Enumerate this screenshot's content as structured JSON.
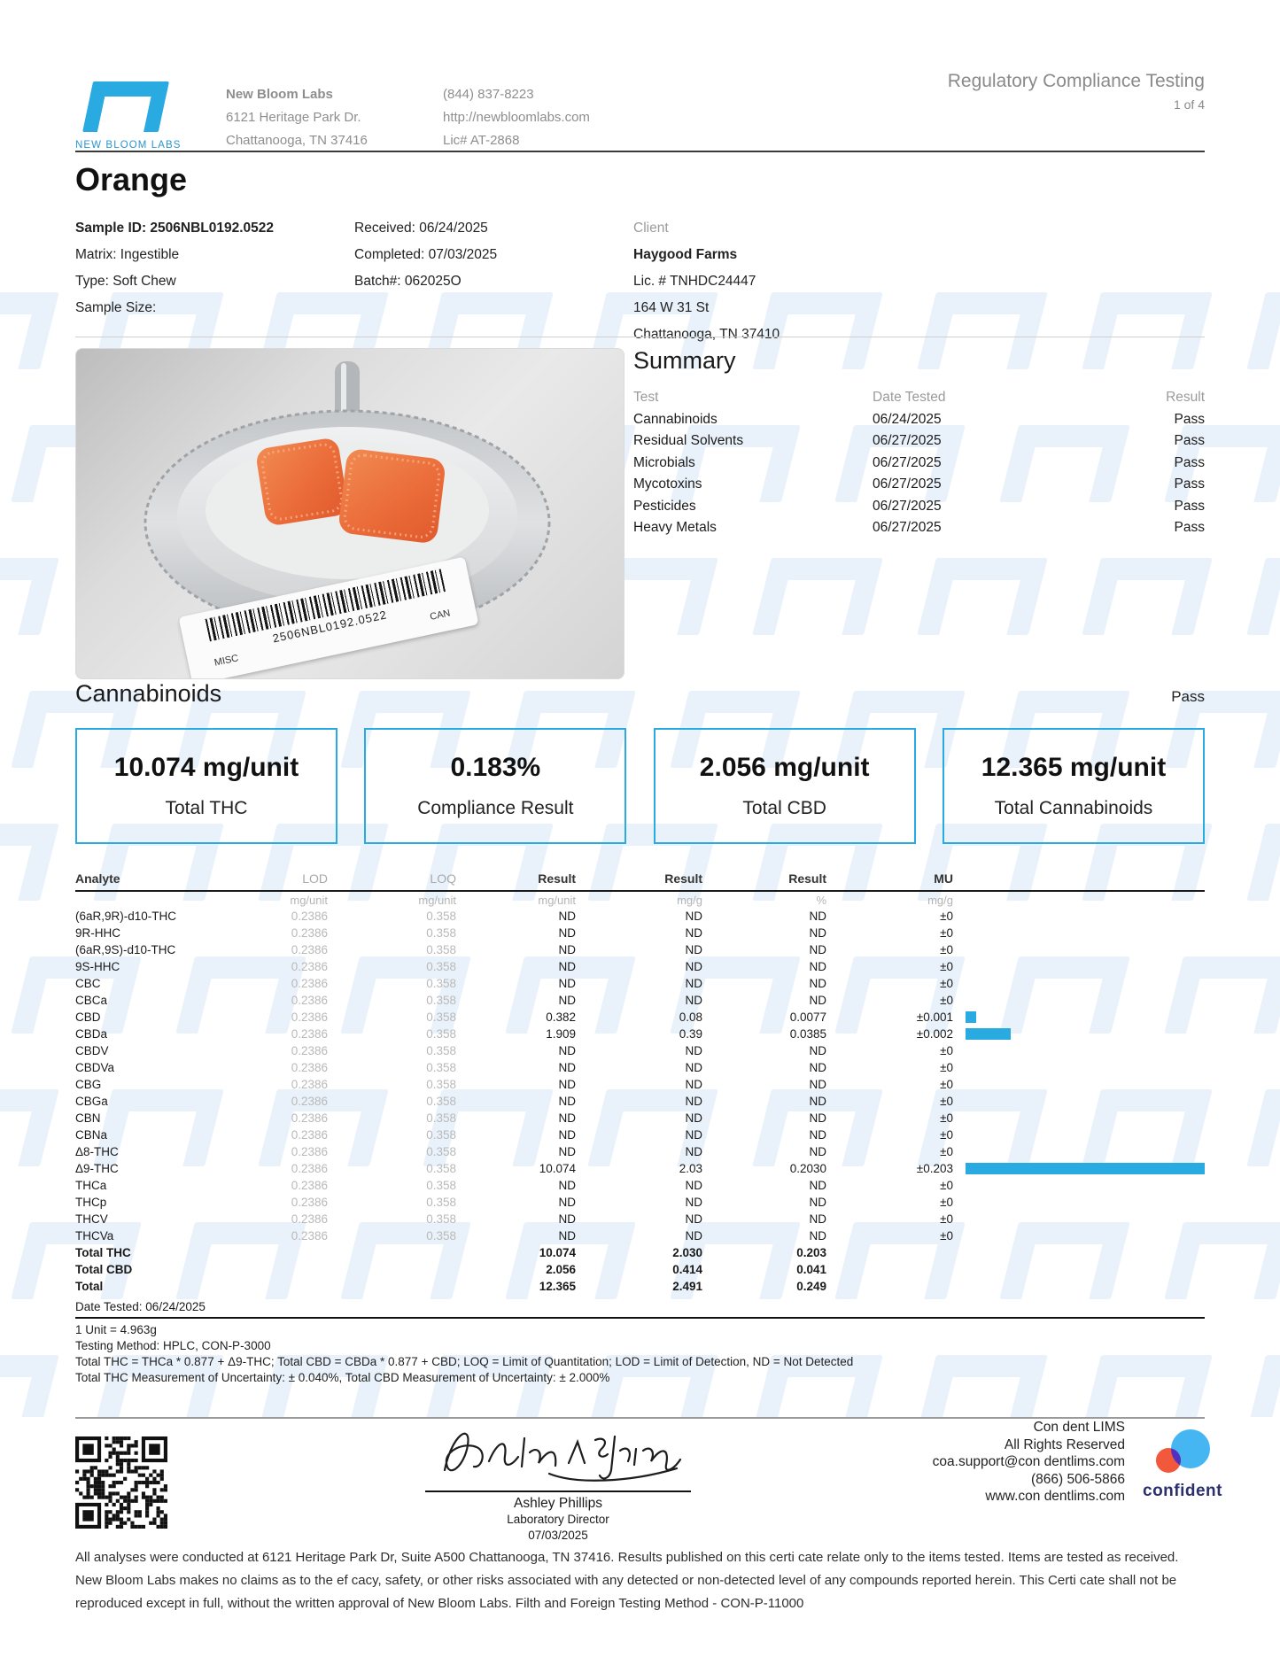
{
  "colors": {
    "accent": "#29abe2",
    "watermark": "#e9f2fa",
    "gray_text": "#8e8e8e"
  },
  "header": {
    "logo_label": "NEW BLOOM LABS",
    "lab_name": "New Bloom Labs",
    "lab_address1": "6121 Heritage Park Dr.",
    "lab_address2": "Chattanooga, TN 37416",
    "lab_phone": "(844) 837-8223",
    "lab_url": "http://newbloomlabs.com",
    "lab_license": "Lic# AT-2868",
    "report_type": "Regulatory Compliance Testing",
    "page": "1 of 4"
  },
  "sample": {
    "title": "Orange",
    "sample_id": "Sample ID: 2506NBL0192.0522",
    "matrix": "Matrix: Ingestible",
    "type": "Type: Soft Chew",
    "sample_size": "Sample Size:",
    "received": "Received: 06/24/2025",
    "completed": "Completed: 07/03/2025",
    "batch": "Batch#: 062025O",
    "client_label": "Client",
    "client_name": "Haygood Farms",
    "client_license": "Lic. # TNHDC24447",
    "client_address1": "164 W 31 St",
    "client_address2": "Chattanooga, TN 37410"
  },
  "photo": {
    "barcode_text": "2506NBL0192.0522",
    "left_tag": "MISC",
    "right_tag": "CAN"
  },
  "summary": {
    "title": "Summary",
    "columns": [
      "Test",
      "Date Tested",
      "Result"
    ],
    "rows": [
      {
        "test": "Cannabinoids",
        "date": "06/24/2025",
        "result": "Pass"
      },
      {
        "test": "Residual Solvents",
        "date": "06/27/2025",
        "result": "Pass"
      },
      {
        "test": "Microbials",
        "date": "06/27/2025",
        "result": "Pass"
      },
      {
        "test": "Mycotoxins",
        "date": "06/27/2025",
        "result": "Pass"
      },
      {
        "test": "Pesticides",
        "date": "06/27/2025",
        "result": "Pass"
      },
      {
        "test": "Heavy Metals",
        "date": "06/27/2025",
        "result": "Pass"
      }
    ]
  },
  "cannabinoids": {
    "title": "Cannabinoids",
    "status": "Pass",
    "metrics": [
      {
        "value": "10.074 mg/unit",
        "label": "Total THC"
      },
      {
        "value": "0.183%",
        "label": "Compliance Result"
      },
      {
        "value": "2.056 mg/unit",
        "label": "Total CBD"
      },
      {
        "value": "12.365 mg/unit",
        "label": "Total Cannabinoids"
      }
    ]
  },
  "analytes": {
    "columns": [
      "Analyte",
      "LOD",
      "LOQ",
      "Result",
      "Result",
      "Result",
      "MU"
    ],
    "units": [
      "mg/unit",
      "mg/unit",
      "mg/unit",
      "mg/g",
      "%",
      "mg/g"
    ],
    "rows": [
      {
        "name": "(6aR,9R)-d10-THC",
        "lod": "0.2386",
        "loq": "0.358",
        "r1": "ND",
        "r2": "ND",
        "r3": "ND",
        "mu": "±0",
        "bar_pct": 0
      },
      {
        "name": "9R-HHC",
        "lod": "0.2386",
        "loq": "0.358",
        "r1": "ND",
        "r2": "ND",
        "r3": "ND",
        "mu": "±0",
        "bar_pct": 0
      },
      {
        "name": "(6aR,9S)-d10-THC",
        "lod": "0.2386",
        "loq": "0.358",
        "r1": "ND",
        "r2": "ND",
        "r3": "ND",
        "mu": "±0",
        "bar_pct": 0
      },
      {
        "name": "9S-HHC",
        "lod": "0.2386",
        "loq": "0.358",
        "r1": "ND",
        "r2": "ND",
        "r3": "ND",
        "mu": "±0",
        "bar_pct": 0
      },
      {
        "name": "CBC",
        "lod": "0.2386",
        "loq": "0.358",
        "r1": "ND",
        "r2": "ND",
        "r3": "ND",
        "mu": "±0",
        "bar_pct": 0
      },
      {
        "name": "CBCa",
        "lod": "0.2386",
        "loq": "0.358",
        "r1": "ND",
        "r2": "ND",
        "r3": "ND",
        "mu": "±0",
        "bar_pct": 0
      },
      {
        "name": "CBD",
        "lod": "0.2386",
        "loq": "0.358",
        "r1": "0.382",
        "r2": "0.08",
        "r3": "0.0077",
        "mu": "±0.001",
        "bar_pct": 4.5
      },
      {
        "name": "CBDa",
        "lod": "0.2386",
        "loq": "0.358",
        "r1": "1.909",
        "r2": "0.39",
        "r3": "0.0385",
        "mu": "±0.002",
        "bar_pct": 19
      },
      {
        "name": "CBDV",
        "lod": "0.2386",
        "loq": "0.358",
        "r1": "ND",
        "r2": "ND",
        "r3": "ND",
        "mu": "±0",
        "bar_pct": 0
      },
      {
        "name": "CBDVa",
        "lod": "0.2386",
        "loq": "0.358",
        "r1": "ND",
        "r2": "ND",
        "r3": "ND",
        "mu": "±0",
        "bar_pct": 0
      },
      {
        "name": "CBG",
        "lod": "0.2386",
        "loq": "0.358",
        "r1": "ND",
        "r2": "ND",
        "r3": "ND",
        "mu": "±0",
        "bar_pct": 0
      },
      {
        "name": "CBGa",
        "lod": "0.2386",
        "loq": "0.358",
        "r1": "ND",
        "r2": "ND",
        "r3": "ND",
        "mu": "±0",
        "bar_pct": 0
      },
      {
        "name": "CBN",
        "lod": "0.2386",
        "loq": "0.358",
        "r1": "ND",
        "r2": "ND",
        "r3": "ND",
        "mu": "±0",
        "bar_pct": 0
      },
      {
        "name": "CBNa",
        "lod": "0.2386",
        "loq": "0.358",
        "r1": "ND",
        "r2": "ND",
        "r3": "ND",
        "mu": "±0",
        "bar_pct": 0
      },
      {
        "name": "Δ8-THC",
        "lod": "0.2386",
        "loq": "0.358",
        "r1": "ND",
        "r2": "ND",
        "r3": "ND",
        "mu": "±0",
        "bar_pct": 0
      },
      {
        "name": "Δ9-THC",
        "lod": "0.2386",
        "loq": "0.358",
        "r1": "10.074",
        "r2": "2.03",
        "r3": "0.2030",
        "mu": "±0.203",
        "bar_pct": 100
      },
      {
        "name": "THCa",
        "lod": "0.2386",
        "loq": "0.358",
        "r1": "ND",
        "r2": "ND",
        "r3": "ND",
        "mu": "±0",
        "bar_pct": 0
      },
      {
        "name": "THCp",
        "lod": "0.2386",
        "loq": "0.358",
        "r1": "ND",
        "r2": "ND",
        "r3": "ND",
        "mu": "±0",
        "bar_pct": 0
      },
      {
        "name": "THCV",
        "lod": "0.2386",
        "loq": "0.358",
        "r1": "ND",
        "r2": "ND",
        "r3": "ND",
        "mu": "±0",
        "bar_pct": 0
      },
      {
        "name": "THCVa",
        "lod": "0.2386",
        "loq": "0.358",
        "r1": "ND",
        "r2": "ND",
        "r3": "ND",
        "mu": "±0",
        "bar_pct": 0
      }
    ],
    "totals": [
      {
        "name": "Total THC",
        "r1": "10.074",
        "r2": "2.030",
        "r3": "0.203"
      },
      {
        "name": "Total CBD",
        "r1": "2.056",
        "r2": "0.414",
        "r3": "0.041"
      },
      {
        "name": "Total",
        "r1": "12.365",
        "r2": "2.491",
        "r3": "0.249"
      }
    ],
    "date_tested": "Date Tested: 06/24/2025",
    "footnotes": [
      "1 Unit = 4.963g",
      "Testing Method: HPLC, CON-P-3000",
      "Total THC = THCa * 0.877 + Δ9-THC; Total CBD = CBDa * 0.877 + CBD; LOQ = Limit of Quantitation; LOD = Limit of Detection, ND = Not Detected",
      "Total THC Measurement of Uncertainty: ± 0.040%, Total CBD Measurement of Uncertainty: ± 2.000%"
    ]
  },
  "footer": {
    "signature_name": "Ashley Phillips",
    "signature_title": "Laboratory Director",
    "signature_date": "07/03/2025",
    "lims_lines": [
      "Con dent LIMS",
      "All Rights Reserved",
      "coa.support@con dentlims.com",
      "(866) 506-5866",
      "www.con dentlims.com"
    ],
    "confident_label": "confident",
    "disclaimer": "All analyses were conducted at 6121 Heritage Park Dr, Suite A500 Chattanooga, TN 37416. Results published on this certi cate relate only to the items tested. Items are tested as received. New Bloom Labs makes no claims as to the ef cacy, safety, or other risks associated with any detected or non-detected level of any compounds reported herein. This Certi cate shall not be reproduced except in full, without the written approval of New Bloom Labs. Filth and Foreign Testing Method - CON-P-11000"
  }
}
